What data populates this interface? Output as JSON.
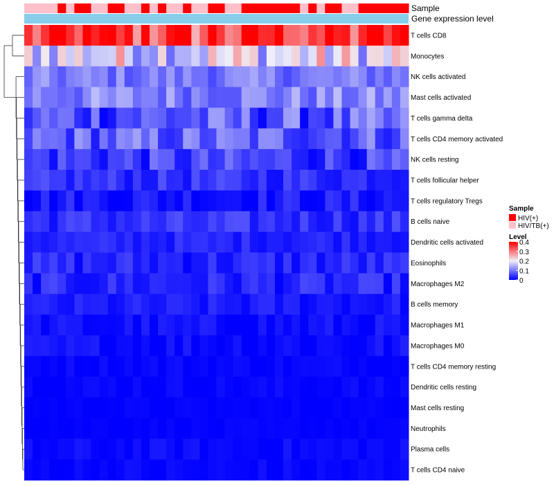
{
  "chart_data": {
    "type": "heatmap",
    "title": "",
    "n_columns": 46,
    "annotation_tracks": [
      {
        "name": "Sample"
      },
      {
        "name": "Gene expression level"
      }
    ],
    "sample_groups": [
      "HIV(+)",
      "HIV/TB(+)"
    ],
    "sample_annotation": [
      "HIV/TB(+)",
      "HIV/TB(+)",
      "HIV/TB(+)",
      "HIV/TB(+)",
      "HIV(+)",
      "HIV/TB(+)",
      "HIV(+)",
      "HIV(+)",
      "HIV/TB(+)",
      "HIV/TB(+)",
      "HIV(+)",
      "HIV(+)",
      "HIV/TB(+)",
      "HIV/TB(+)",
      "HIV(+)",
      "HIV/TB(+)",
      "HIV(+)",
      "HIV/TB(+)",
      "HIV/TB(+)",
      "HIV(+)",
      "HIV/TB(+)",
      "HIV/TB(+)",
      "HIV(+)",
      "HIV(+)",
      "HIV/TB(+)",
      "HIV/TB(+)",
      "HIV(+)",
      "HIV(+)",
      "HIV(+)",
      "HIV(+)",
      "HIV(+)",
      "HIV(+)",
      "HIV(+)",
      "HIV/TB(+)",
      "HIV(+)",
      "HIV/TB(+)",
      "HIV(+)",
      "HIV(+)",
      "HIV/TB(+)",
      "HIV/TB(+)",
      "HIV(+)",
      "HIV(+)",
      "HIV(+)",
      "HIV(+)",
      "HIV(+)",
      "HIV(+)"
    ],
    "rows": [
      "T cells CD8",
      "Monocytes",
      "NK cells activated",
      "Mast cells activated",
      "T cells gamma delta",
      "T cells CD4 memory activated",
      "NK cells resting",
      "T cells follicular helper",
      "T cells regulatory  Tregs",
      "B cells naive",
      "Dendritic cells activated",
      "Eosinophils",
      "Macrophages M2",
      "B cells memory",
      "Macrophages M1",
      "Macrophages M0",
      "T cells CD4 memory resting",
      "Dendritic cells resting",
      "Mast cells resting",
      "Neutrophils",
      "Plasma cells",
      "T cells CD4 naive"
    ],
    "row_means": [
      0.33,
      0.19,
      0.1,
      0.11,
      0.07,
      0.08,
      0.05,
      0.04,
      0.02,
      0.04,
      0.03,
      0.03,
      0.03,
      0.02,
      0.01,
      0.01,
      0.005,
      0.005,
      0.002,
      0.002,
      0.006,
      0.004
    ],
    "row_spread": [
      0.1,
      0.1,
      0.04,
      0.05,
      0.07,
      0.06,
      0.05,
      0.03,
      0.03,
      0.03,
      0.02,
      0.03,
      0.03,
      0.02,
      0.02,
      0.02,
      0.01,
      0.01,
      0.005,
      0.005,
      0.015,
      0.012
    ],
    "color_scale": {
      "min": 0,
      "max": 0.4,
      "low": "#0000ff",
      "mid": "#f0f0f8",
      "high": "#ff0000",
      "midpoint": 0.2
    },
    "legend": {
      "sample_title": "Sample",
      "sample_entries": [
        {
          "label": "HIV(+)",
          "color": "#ff0000"
        },
        {
          "label": "HIV/TB(+)",
          "color": "#ffc0cb"
        }
      ],
      "level_title": "Level",
      "level_ticks": [
        "0.4",
        "0.3",
        "0.2",
        "0.1",
        "0"
      ],
      "level_tick_values": [
        0.4,
        0.3,
        0.2,
        0.1,
        0
      ]
    },
    "expression_track_color": "#87ceeb"
  }
}
